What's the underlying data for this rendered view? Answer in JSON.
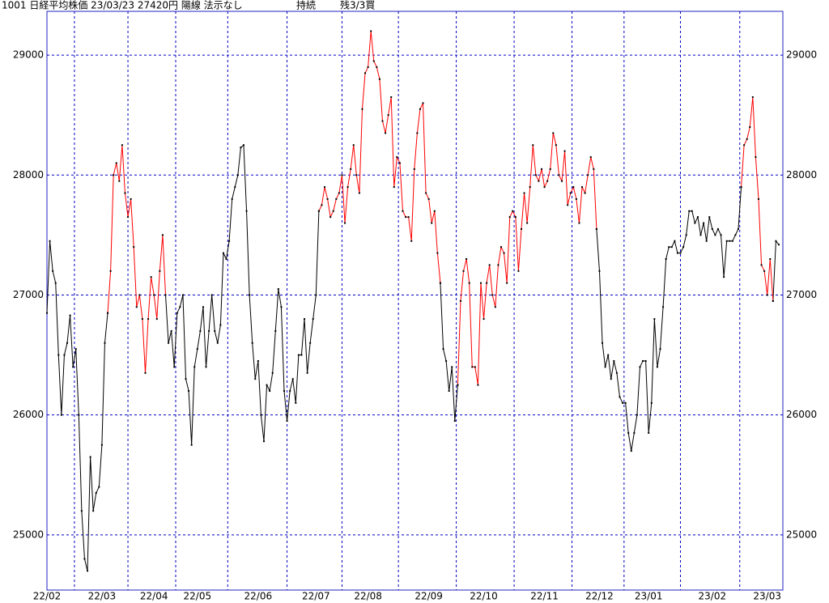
{
  "chart_data": {
    "type": "line",
    "title": "1001 日経平均株価 23/03/23 27420円 陽線 法示なし",
    "status": "持続",
    "signal": "残3/3買",
    "categories": [
      "22/02",
      null,
      null,
      null,
      null,
      null,
      null,
      null,
      null,
      null,
      null,
      null,
      null,
      null,
      null,
      null,
      null,
      null,
      null,
      "22/03",
      null,
      null,
      null,
      null,
      null,
      null,
      null,
      null,
      null,
      null,
      null,
      null,
      null,
      null,
      null,
      null,
      null,
      "22/04",
      null,
      null,
      null,
      null,
      null,
      null,
      null,
      null,
      null,
      null,
      null,
      null,
      null,
      null,
      "22/05",
      null,
      null,
      null,
      null,
      null,
      null,
      null,
      null,
      null,
      null,
      null,
      null,
      null,
      null,
      null,
      null,
      null,
      null,
      null,
      null,
      "22/06",
      null,
      null,
      null,
      null,
      null,
      null,
      null,
      null,
      null,
      null,
      null,
      null,
      null,
      null,
      null,
      null,
      null,
      null,
      null,
      "22/07",
      null,
      null,
      null,
      null,
      null,
      null,
      null,
      null,
      null,
      null,
      null,
      null,
      null,
      null,
      null,
      null,
      null,
      "22/08",
      null,
      null,
      null,
      null,
      null,
      null,
      null,
      null,
      null,
      null,
      null,
      null,
      null,
      null,
      null,
      null,
      null,
      null,
      null,
      null,
      "22/09",
      null,
      null,
      null,
      null,
      null,
      null,
      null,
      null,
      null,
      null,
      null,
      null,
      null,
      null,
      null,
      null,
      null,
      null,
      "22/10",
      null,
      null,
      null,
      null,
      null,
      null,
      null,
      null,
      null,
      null,
      null,
      null,
      null,
      null,
      null,
      null,
      null,
      null,
      null,
      null,
      "22/11",
      null,
      null,
      null,
      null,
      null,
      null,
      null,
      null,
      null,
      null,
      null,
      null,
      null,
      null,
      null,
      null,
      null,
      null,
      "22/12",
      null,
      null,
      null,
      null,
      null,
      null,
      null,
      null,
      null,
      null,
      null,
      null,
      null,
      null,
      null,
      null,
      "23/01",
      null,
      null,
      null,
      null,
      null,
      null,
      null,
      null,
      null,
      null,
      null,
      null,
      null,
      null,
      null,
      null,
      null,
      null,
      null,
      null,
      null,
      "23/02",
      null,
      null,
      null,
      null,
      null,
      null,
      null,
      null,
      null,
      null,
      null,
      null,
      null,
      null,
      null,
      null,
      null,
      null,
      "23/03",
      null,
      null,
      null,
      null
    ],
    "series": [
      {
        "color": "#000000",
        "values": [
          26850,
          27450,
          27200,
          27100,
          26500,
          26000,
          26500,
          26600,
          26830,
          26400,
          26550,
          26000,
          25200,
          24800,
          24700,
          25650,
          25200,
          25350,
          25400,
          25750,
          26600,
          26850,
          null,
          null,
          null,
          null,
          null,
          null,
          null,
          null,
          null,
          null,
          null,
          null,
          null,
          null,
          null,
          null,
          null,
          null,
          null,
          27000,
          26600,
          26700,
          26400,
          26850,
          26900,
          27000,
          26300,
          26200,
          25750,
          26400,
          26550,
          26700,
          26900,
          26400,
          26700,
          27000,
          26700,
          26600,
          26750,
          27350,
          27300,
          27450,
          27800,
          27900,
          28000,
          28230,
          28250,
          27700,
          27000,
          26600,
          26300,
          26450,
          26000,
          25780,
          26250,
          26200,
          26350,
          26700,
          27050,
          26900,
          26200,
          25950,
          26200,
          26300,
          26100,
          26500,
          26500,
          26800,
          26350,
          26600,
          26800,
          27000,
          27700,
          null,
          null,
          null,
          null,
          null,
          null,
          null,
          null,
          null,
          null,
          null,
          null,
          null,
          null,
          null,
          null,
          null,
          null,
          null,
          null,
          null,
          null,
          null,
          null,
          null,
          null,
          null,
          null,
          null,
          null,
          null,
          null,
          null,
          null,
          null,
          null,
          null,
          null,
          null,
          null,
          null,
          27100,
          26550,
          26450,
          26200,
          26400,
          25950,
          26250,
          null,
          null,
          null,
          null,
          null,
          null,
          null,
          null,
          null,
          null,
          null,
          null,
          null,
          null,
          null,
          null,
          null,
          null,
          null,
          null,
          null,
          null,
          null,
          null,
          null,
          null,
          null,
          null,
          null,
          null,
          null,
          null,
          null,
          null,
          null,
          null,
          null,
          null,
          null,
          null,
          null,
          null,
          null,
          null,
          null,
          null,
          null,
          27550,
          27200,
          26600,
          26400,
          26500,
          26300,
          26450,
          26350,
          26150,
          26100,
          26100,
          25850,
          25700,
          25850,
          26000,
          26400,
          26450,
          26450,
          25850,
          26100,
          26800,
          26400,
          26550,
          26900,
          27300,
          27400,
          27400,
          27450,
          27350,
          27350,
          27400,
          27500,
          27700,
          27700,
          27600,
          27650,
          27500,
          27600,
          27450,
          27650,
          27550,
          27500,
          27550,
          27500,
          27150,
          27450,
          27450,
          27450,
          27500,
          27550,
          27900,
          null,
          null,
          null,
          null,
          null,
          null,
          null,
          null,
          null,
          null,
          26950,
          27450,
          27420
        ]
      },
      {
        "color": "#ff0000",
        "values": [
          null,
          null,
          null,
          null,
          null,
          null,
          null,
          null,
          null,
          null,
          null,
          null,
          null,
          null,
          null,
          null,
          null,
          null,
          null,
          null,
          null,
          26850,
          27200,
          28000,
          28100,
          27950,
          28250,
          27850,
          27650,
          27800,
          27400,
          26900,
          27000,
          26800,
          26350,
          26800,
          27150,
          27000,
          26800,
          27200,
          27500,
          27000,
          null,
          null,
          null,
          null,
          null,
          null,
          null,
          null,
          null,
          null,
          null,
          null,
          null,
          null,
          null,
          null,
          null,
          null,
          null,
          null,
          null,
          null,
          null,
          null,
          null,
          null,
          null,
          null,
          null,
          null,
          null,
          null,
          null,
          null,
          null,
          null,
          null,
          null,
          null,
          null,
          null,
          null,
          null,
          null,
          null,
          null,
          null,
          null,
          null,
          null,
          null,
          null,
          27700,
          27750,
          27900,
          27800,
          27650,
          27700,
          27800,
          27850,
          28000,
          27600,
          27900,
          28050,
          28250,
          28000,
          27850,
          28550,
          28850,
          28900,
          29200,
          28950,
          28900,
          28800,
          28450,
          28350,
          28500,
          28650,
          27900,
          28150,
          28100,
          27700,
          27650,
          27650,
          27450,
          28050,
          28350,
          28550,
          28600,
          27850,
          27800,
          27600,
          27700,
          27350,
          27100,
          null,
          null,
          null,
          null,
          null,
          26250,
          26950,
          27200,
          27300,
          27100,
          26400,
          26400,
          26250,
          27100,
          26800,
          27100,
          27250,
          27000,
          26900,
          27250,
          27400,
          27350,
          27100,
          27650,
          27700,
          27650,
          27200,
          27550,
          27850,
          27600,
          27900,
          28250,
          28000,
          27950,
          28050,
          27900,
          27950,
          28050,
          28350,
          28250,
          28000,
          27950,
          28200,
          27750,
          27850,
          27900,
          27800,
          27600,
          27900,
          27850,
          28000,
          28150,
          28050,
          27550,
          null,
          null,
          null,
          null,
          null,
          null,
          null,
          null,
          null,
          null,
          null,
          null,
          null,
          null,
          null,
          null,
          null,
          null,
          null,
          null,
          null,
          null,
          null,
          null,
          null,
          null,
          null,
          null,
          null,
          null,
          null,
          null,
          null,
          null,
          null,
          null,
          null,
          null,
          null,
          null,
          null,
          null,
          null,
          null,
          null,
          null,
          null,
          null,
          null,
          27900,
          28250,
          28300,
          28400,
          28650,
          28150,
          27800,
          27250,
          27200,
          27000,
          27300,
          26950,
          null,
          null
        ]
      }
    ],
    "marker_color": "#000000",
    "frame_color": "#2020c0",
    "grid": true,
    "ylim": [
      24540,
      29365
    ],
    "yticks": [
      25000,
      26000,
      27000,
      28000,
      29000
    ]
  }
}
